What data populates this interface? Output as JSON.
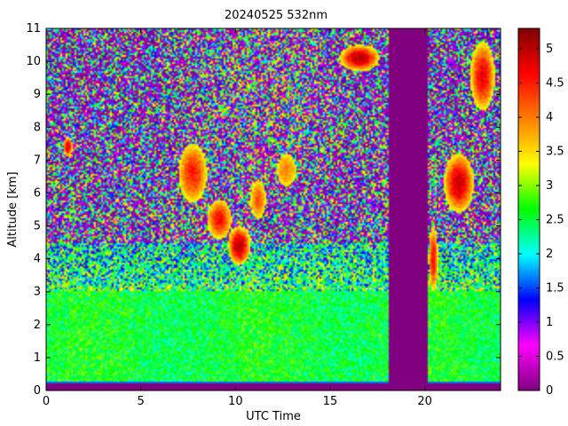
{
  "chart_data": {
    "type": "heatmap",
    "title": "20240525 532nm",
    "xlabel": "UTC Time",
    "ylabel": "Altitude [km]",
    "xlim": [
      0,
      24
    ],
    "ylim": [
      0,
      11
    ],
    "x_ticks": [
      0,
      5,
      10,
      15,
      20
    ],
    "y_ticks": [
      0,
      1,
      2,
      3,
      4,
      5,
      6,
      7,
      8,
      9,
      10,
      11
    ],
    "colorbar": {
      "range": [
        0,
        5.3
      ],
      "ticks": [
        "0",
        "0.5",
        "1",
        "1.5",
        "2",
        "2.5",
        "3",
        "3.5",
        "4",
        "4.5",
        "5"
      ],
      "tick_values": [
        0,
        0.5,
        1,
        1.5,
        2,
        2.5,
        3,
        3.5,
        4,
        4.5,
        5
      ],
      "colormap": [
        "#800080",
        "#ff00ff",
        "#0000ff",
        "#00ffff",
        "#00ff00",
        "#ffff00",
        "#ff8000",
        "#ff0000",
        "#800000"
      ]
    },
    "no_data_intervals": [
      [
        18.1,
        20.2
      ]
    ],
    "cloud_layers": [
      {
        "t_start": 0.9,
        "t_end": 1.4,
        "alt_bottom": 7.1,
        "alt_top": 7.7,
        "value": 4.8
      },
      {
        "t_start": 7.0,
        "t_end": 8.5,
        "alt_bottom": 5.7,
        "alt_top": 7.5,
        "value": 4.5
      },
      {
        "t_start": 8.5,
        "t_end": 9.8,
        "alt_bottom": 4.6,
        "alt_top": 5.8,
        "value": 4.6
      },
      {
        "t_start": 9.6,
        "t_end": 10.8,
        "alt_bottom": 3.8,
        "alt_top": 5.0,
        "value": 5.0
      },
      {
        "t_start": 10.8,
        "t_end": 11.6,
        "alt_bottom": 5.2,
        "alt_top": 6.4,
        "value": 4.2
      },
      {
        "t_start": 12.2,
        "t_end": 13.2,
        "alt_bottom": 6.2,
        "alt_top": 7.2,
        "value": 4.0
      },
      {
        "t_start": 15.5,
        "t_end": 17.6,
        "alt_bottom": 9.7,
        "alt_top": 10.5,
        "value": 5.0
      },
      {
        "t_start": 20.2,
        "t_end": 20.7,
        "alt_bottom": 3.0,
        "alt_top": 5.0,
        "value": 4.6
      },
      {
        "t_start": 21.0,
        "t_end": 22.6,
        "alt_bottom": 5.4,
        "alt_top": 7.2,
        "value": 4.9
      },
      {
        "t_start": 22.4,
        "t_end": 23.7,
        "alt_bottom": 8.5,
        "alt_top": 10.6,
        "value": 4.7
      }
    ]
  }
}
